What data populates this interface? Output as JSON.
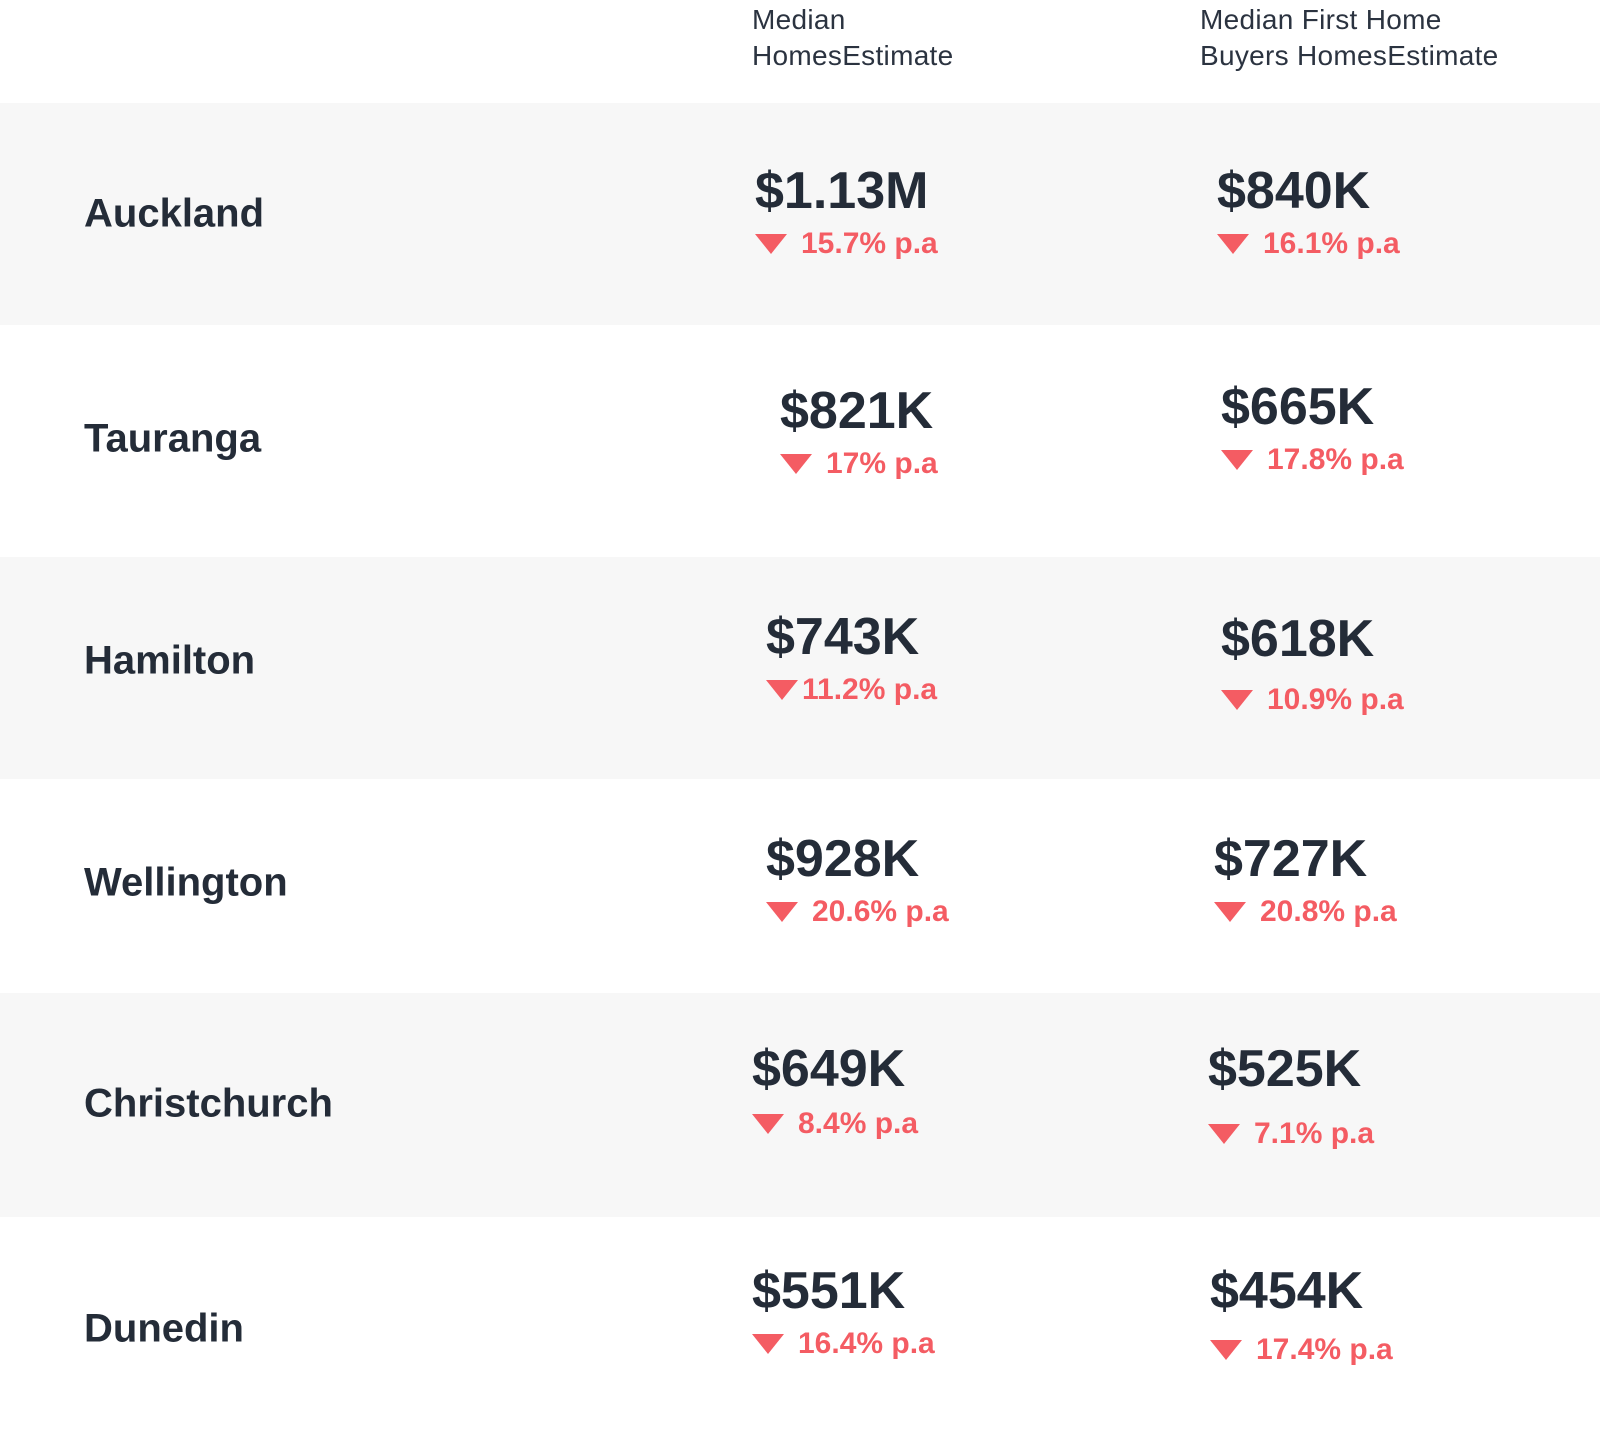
{
  "header": {
    "col1": "Median HomesEstimate",
    "col1_line1": "Median",
    "col1_line2": "HomesEstimate",
    "col2_line1": "Median First Home",
    "col2_line2": "Buyers HomesEstimate"
  },
  "rows": [
    {
      "city": "Auckland",
      "median": "$1.13M",
      "median_change": "15.7% p.a",
      "fhb": "$840K",
      "fhb_change": "16.1% p.a",
      "shaded": true
    },
    {
      "city": "Tauranga",
      "median": "$821K",
      "median_change": "17% p.a",
      "fhb": "$665K",
      "fhb_change": "17.8% p.a",
      "shaded": false
    },
    {
      "city": "Hamilton",
      "median": "$743K",
      "median_change": "11.2% p.a",
      "fhb": "$618K",
      "fhb_change": "10.9% p.a",
      "shaded": true
    },
    {
      "city": "Wellington",
      "median": "$928K",
      "median_change": "20.6% p.a",
      "fhb": "$727K",
      "fhb_change": "20.8% p.a",
      "shaded": false
    },
    {
      "city": "Christchurch",
      "median": "$649K",
      "median_change": "8.4% p.a",
      "fhb": "$525K",
      "fhb_change": "7.1% p.a",
      "shaded": true
    },
    {
      "city": "Dunedin",
      "median": "$551K",
      "median_change": "16.4% p.a",
      "fhb": "$454K",
      "fhb_change": "17.4% p.a",
      "shaded": false
    }
  ],
  "colors": {
    "accent_down": "#f45c63",
    "text": "#242c38",
    "row_shade": "#f7f7f7"
  },
  "icons": {
    "change": "triangle-down-icon"
  }
}
